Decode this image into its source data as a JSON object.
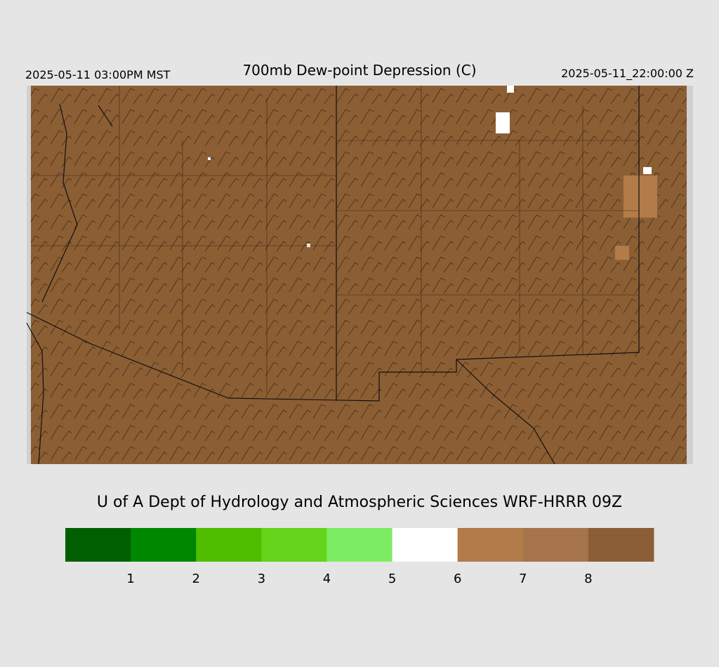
{
  "header": {
    "left": "2025-05-11 03:00PM MST",
    "title": "700mb Dew-point Depression (C)",
    "right": "2025-05-11_22:00:00 Z"
  },
  "footer": {
    "credit": "U of A Dept of Hydrology and Atmospheric Sciences WRF-HRRR 09Z"
  },
  "colorbar": {
    "colors": [
      "#005f00",
      "#008700",
      "#4fbd00",
      "#66d41a",
      "#7ced63",
      "#ffffff",
      "#b27b47",
      "#a6744a",
      "#8b5e37"
    ],
    "ticks": [
      1,
      2,
      3,
      4,
      5,
      6,
      7,
      8
    ]
  }
}
